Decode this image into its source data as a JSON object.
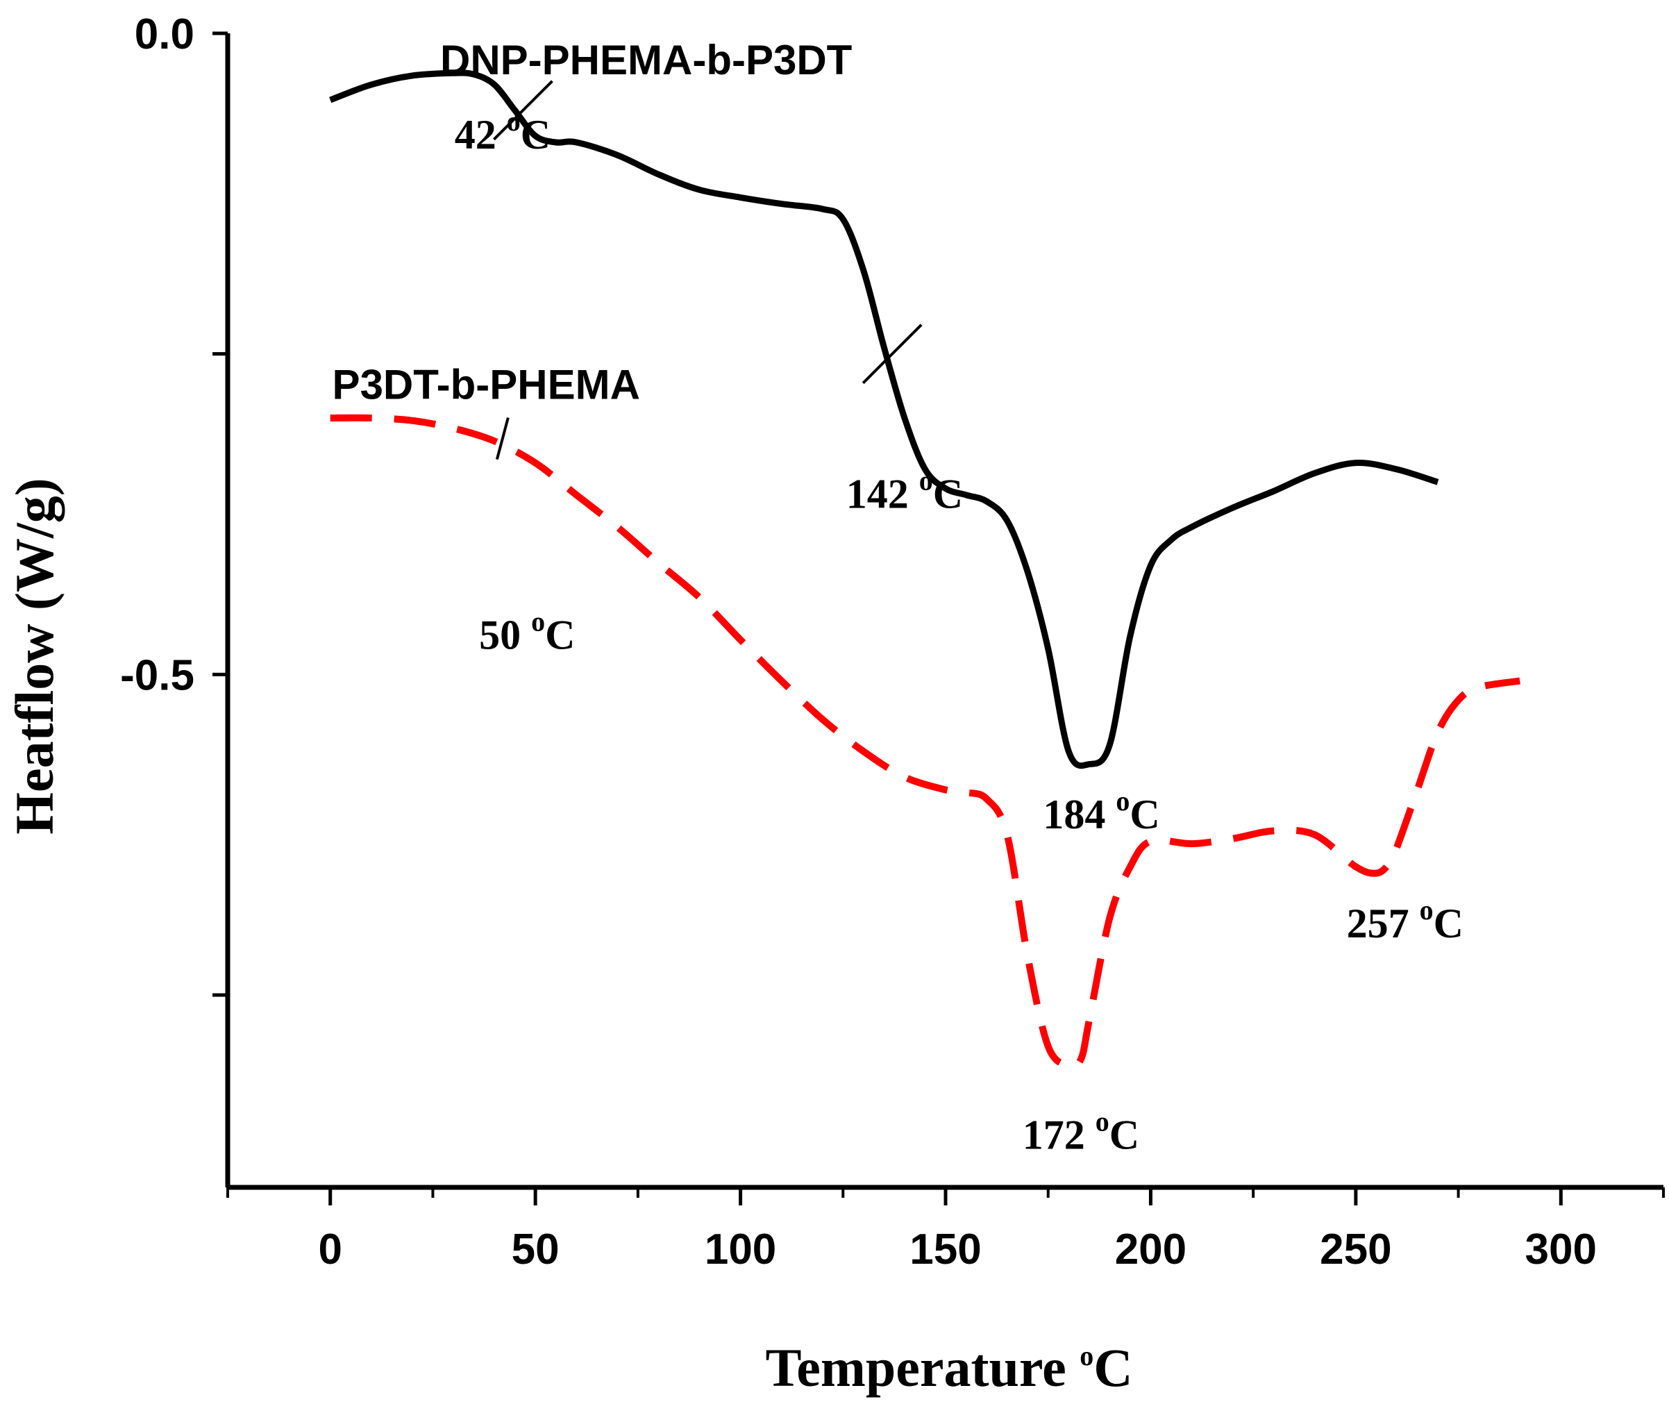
{
  "chart_data": {
    "type": "line",
    "xlabel": "Temperature",
    "xlabel_unit": "C",
    "xlabel_unit_sup": "o",
    "ylabel": "Heatflow (W/g)",
    "xlim": [
      -25,
      325
    ],
    "ylim": [
      -0.9,
      0.0
    ],
    "x_ticks": [
      0,
      50,
      100,
      150,
      200,
      250,
      300
    ],
    "x_tick_labels": [
      "0",
      "50",
      "100",
      "150",
      "200",
      "250",
      "300"
    ],
    "x_minor_ticks": [
      -25,
      25,
      75,
      125,
      175,
      225,
      275,
      325
    ],
    "y_ticks": [
      0.0,
      -0.25,
      -0.5,
      -0.75
    ],
    "y_tick_labels": [
      "0.0",
      "",
      "-0.5",
      ""
    ],
    "grid": false,
    "series": [
      {
        "name": "DNP-PHEMA-b-P3DT",
        "color": "#000000",
        "dash": "solid",
        "x": [
          0,
          10,
          20,
          30,
          35,
          40,
          45,
          50,
          55,
          60,
          70,
          80,
          90,
          100,
          110,
          120,
          125,
          130,
          135,
          140,
          145,
          150,
          155,
          160,
          165,
          170,
          175,
          180,
          185,
          190,
          195,
          200,
          205,
          210,
          220,
          230,
          240,
          250,
          260,
          270
        ],
        "y": [
          -0.052,
          -0.04,
          -0.033,
          -0.031,
          -0.032,
          -0.04,
          -0.06,
          -0.08,
          -0.085,
          -0.085,
          -0.095,
          -0.11,
          -0.122,
          -0.128,
          -0.133,
          -0.137,
          -0.145,
          -0.185,
          -0.245,
          -0.3,
          -0.34,
          -0.355,
          -0.36,
          -0.365,
          -0.38,
          -0.42,
          -0.48,
          -0.56,
          -0.57,
          -0.555,
          -0.47,
          -0.415,
          -0.395,
          -0.385,
          -0.37,
          -0.357,
          -0.343,
          -0.335,
          -0.34,
          -0.35
        ]
      },
      {
        "name": "P3DT-b-PHEMA",
        "color": "#ff0000",
        "dash": "dashed",
        "x": [
          0,
          10,
          20,
          30,
          40,
          50,
          60,
          70,
          80,
          90,
          100,
          110,
          120,
          130,
          140,
          150,
          155,
          160,
          165,
          170,
          175,
          180,
          183,
          185,
          190,
          195,
          200,
          210,
          220,
          230,
          240,
          250,
          255,
          258,
          260,
          265,
          270,
          275,
          280,
          290
        ],
        "y": [
          -0.3,
          -0.3,
          -0.302,
          -0.308,
          -0.318,
          -0.335,
          -0.36,
          -0.385,
          -0.413,
          -0.44,
          -0.473,
          -0.505,
          -0.535,
          -0.56,
          -0.58,
          -0.59,
          -0.592,
          -0.597,
          -0.625,
          -0.72,
          -0.79,
          -0.805,
          -0.8,
          -0.77,
          -0.69,
          -0.65,
          -0.63,
          -0.632,
          -0.628,
          -0.622,
          -0.625,
          -0.65,
          -0.655,
          -0.648,
          -0.635,
          -0.59,
          -0.545,
          -0.52,
          -0.51,
          -0.505
        ]
      }
    ],
    "annotations": [
      {
        "value": "42",
        "unit_sup": "o",
        "unit": "C",
        "x": 42,
        "y": -0.09
      },
      {
        "value": "142",
        "unit_sup": "o",
        "unit": "C",
        "x": 140,
        "y": -0.37
      },
      {
        "value": "50",
        "unit_sup": "o",
        "unit": "C",
        "x": 48,
        "y": -0.48
      },
      {
        "value": "184",
        "unit_sup": "o",
        "unit": "C",
        "x": 188,
        "y": -0.62
      },
      {
        "value": "257",
        "unit_sup": "o",
        "unit": "C",
        "x": 262,
        "y": -0.705
      },
      {
        "value": "172",
        "unit_sup": "o",
        "unit": "C",
        "x": 183,
        "y": -0.87
      }
    ],
    "tangent_marks": [
      {
        "x": 47,
        "y": -0.06,
        "slope": "steep"
      },
      {
        "x": 137,
        "y": -0.25,
        "slope": "steep"
      },
      {
        "x": 42,
        "y": -0.316,
        "slope": "vertical"
      }
    ],
    "series_labels": [
      {
        "series": 0,
        "text": "DNP-PHEMA-b-P3DT",
        "x": 77,
        "y": -0.032
      },
      {
        "series": 1,
        "text": "P3DT-b-PHEMA",
        "x": 38,
        "y": -0.285
      }
    ]
  }
}
